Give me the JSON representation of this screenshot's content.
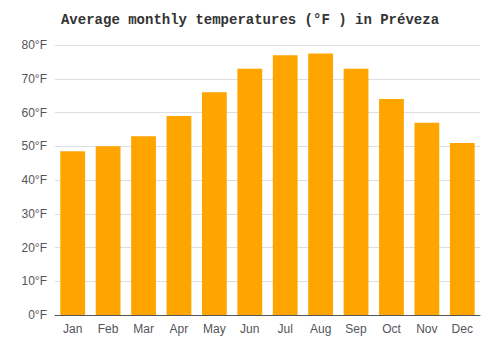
{
  "chart_data": {
    "type": "bar",
    "title": "Average monthly temperatures (°F ) in Préveza",
    "categories": [
      "Jan",
      "Feb",
      "Mar",
      "Apr",
      "May",
      "Jun",
      "Jul",
      "Aug",
      "Sep",
      "Oct",
      "Nov",
      "Dec"
    ],
    "values": [
      48.5,
      50.0,
      53.0,
      59.0,
      66.0,
      73.0,
      77.0,
      77.5,
      73.0,
      64.0,
      57.0,
      51.0
    ],
    "color": "#FFA500",
    "ylim": [
      0,
      80
    ],
    "yticks": [
      {
        "value": 0,
        "label": "0°F"
      },
      {
        "value": 10,
        "label": "10°F"
      },
      {
        "value": 20,
        "label": "20°F"
      },
      {
        "value": 30,
        "label": "30°F"
      },
      {
        "value": 40,
        "label": "40°F"
      },
      {
        "value": 50,
        "label": "50°F"
      },
      {
        "value": 60,
        "label": "60°F"
      },
      {
        "value": 70,
        "label": "70°F"
      },
      {
        "value": 80,
        "label": "80°F"
      }
    ],
    "grid": true
  }
}
